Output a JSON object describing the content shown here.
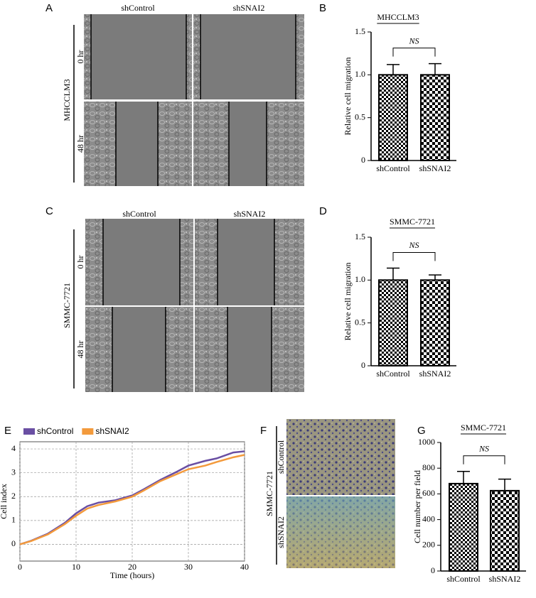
{
  "panels": {
    "A": {
      "panel_label": "A",
      "columns": [
        "shControl",
        "shSNAI2"
      ],
      "rows": [
        "0 hr",
        "48 hr"
      ],
      "cell_line": "MHCCLM3"
    },
    "C": {
      "panel_label": "C",
      "columns": [
        "shControl",
        "shSNAI2"
      ],
      "rows": [
        "0 hr",
        "48 hr"
      ],
      "cell_line": "SMMC-7721"
    },
    "F": {
      "panel_label": "F",
      "rows": [
        "shControl",
        "shSNAI2"
      ],
      "cell_line": "SMMC-7721"
    }
  },
  "chart_data": [
    {
      "type": "bar",
      "panel_label": "B",
      "title": "MHCCLM3",
      "ylabel": "Relative cell migration",
      "annotation": "NS",
      "categories": [
        "shControl",
        "shSNAI2"
      ],
      "values": [
        1.0,
        1.0
      ],
      "errors": [
        0.12,
        0.13
      ],
      "ylim": [
        0,
        1.5
      ],
      "yticks": [
        0,
        0.5,
        {
          "value": 1,
          "label": "1.0"
        },
        1.5
      ]
    },
    {
      "type": "bar",
      "panel_label": "D",
      "title": "SMMC-7721",
      "ylabel": "Relative cell migration",
      "annotation": "NS",
      "categories": [
        "shControl",
        "shSNAI2"
      ],
      "values": [
        1.0,
        1.0
      ],
      "errors": [
        0.14,
        0.06
      ],
      "ylim": [
        0,
        1.5
      ],
      "yticks": [
        0,
        0.5,
        {
          "value": 1,
          "label": "1.0"
        },
        1.5
      ]
    },
    {
      "type": "line",
      "panel_label": "E",
      "xlabel": "Time (hours)",
      "ylabel": "Cell index",
      "grid": true,
      "x": [
        0,
        2,
        5,
        8,
        10,
        12,
        14,
        17,
        20,
        22,
        25,
        28,
        30,
        33,
        35,
        38,
        40
      ],
      "series": [
        {
          "name": "shControl",
          "color": "#6a4fa3",
          "values": [
            0,
            0.15,
            0.45,
            0.9,
            1.3,
            1.6,
            1.75,
            1.85,
            2.05,
            2.3,
            2.7,
            3.05,
            3.3,
            3.5,
            3.6,
            3.85,
            3.9
          ]
        },
        {
          "name": "shSNAI2",
          "color": "#f39a3c",
          "values": [
            0,
            0.14,
            0.42,
            0.85,
            1.2,
            1.5,
            1.65,
            1.8,
            2.0,
            2.25,
            2.65,
            2.95,
            3.15,
            3.3,
            3.45,
            3.65,
            3.75
          ]
        }
      ],
      "xlim": [
        0,
        40
      ],
      "xticks": [
        0,
        10,
        20,
        30,
        40
      ],
      "ylim": [
        -0.7,
        4.3
      ],
      "yticks": [
        0,
        1,
        2,
        3,
        4
      ]
    },
    {
      "type": "bar",
      "panel_label": "G",
      "title": "SMMC-7721",
      "ylabel": "Cell number per field",
      "annotation": "NS",
      "categories": [
        "shControl",
        "shSNAI2"
      ],
      "values": [
        680,
        625
      ],
      "errors": [
        95,
        90
      ],
      "ylim": [
        0,
        1000
      ],
      "yticks": [
        0,
        200,
        400,
        600,
        800,
        1000
      ]
    }
  ]
}
